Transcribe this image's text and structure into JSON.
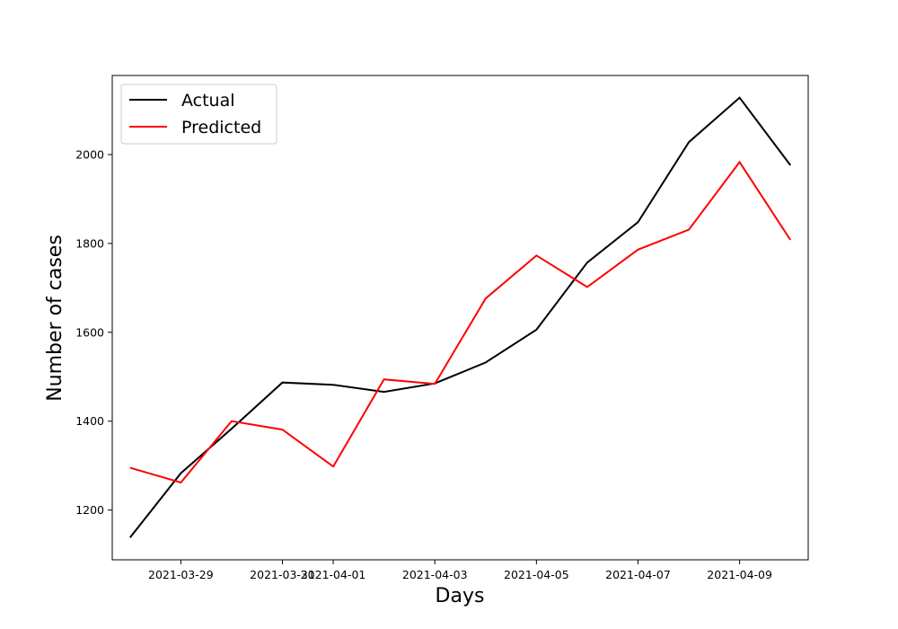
{
  "chart_data": {
    "type": "line",
    "title": "",
    "xlabel": "Days",
    "ylabel": "Number of cases",
    "x": [
      "2021-03-28",
      "2021-03-29",
      "2021-03-30",
      "2021-03-31",
      "2021-04-01",
      "2021-04-02",
      "2021-04-03",
      "2021-04-04",
      "2021-04-05",
      "2021-04-06",
      "2021-04-07",
      "2021-04-08",
      "2021-04-09",
      "2021-04-10"
    ],
    "series": [
      {
        "name": "Actual",
        "color": "#000000",
        "values": [
          1138,
          1283,
          1383,
          1487,
          1482,
          1466,
          1485,
          1532,
          1606,
          1757,
          1848,
          2028,
          2128,
          1976
        ]
      },
      {
        "name": "Predicted",
        "color": "#ff0000",
        "values": [
          1295,
          1262,
          1400,
          1381,
          1298,
          1494,
          1484,
          1676,
          1773,
          1702,
          1786,
          1831,
          1983,
          1808
        ]
      }
    ],
    "xticks": [
      "2021-03-29",
      "2021-03-31",
      "2021-04-01",
      "2021-04-03",
      "2021-04-05",
      "2021-04-07",
      "2021-04-09"
    ],
    "yticks": [
      1200,
      1400,
      1600,
      1800,
      2000
    ],
    "xlim": [
      "2021-03-27 15:36",
      "2021-04-10 08:24"
    ],
    "ylim": [
      1088,
      2178
    ],
    "grid": false,
    "legend": "upper-left"
  }
}
